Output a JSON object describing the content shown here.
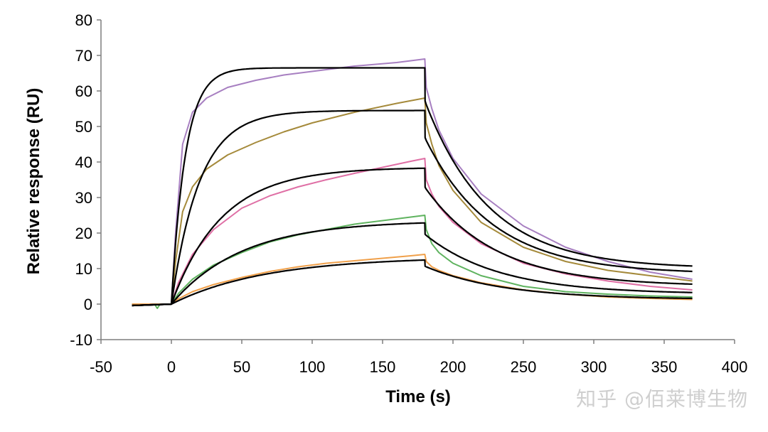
{
  "chart_data": {
    "type": "line",
    "title": "",
    "xlabel": "Time (s)",
    "ylabel": "Relative response (RU)",
    "xlim": [
      -50,
      400
    ],
    "ylim": [
      -10,
      80
    ],
    "xticks": [
      -50,
      0,
      50,
      100,
      150,
      200,
      250,
      300,
      350,
      400
    ],
    "yticks": [
      -10,
      0,
      10,
      20,
      30,
      40,
      50,
      60,
      70,
      80
    ],
    "grid": false,
    "legend": "none",
    "series": [
      {
        "kind": "measured",
        "color": "#a77fc1",
        "x": [
          -28,
          0,
          3,
          8,
          15,
          25,
          40,
          60,
          80,
          100,
          130,
          160,
          180,
          181,
          185,
          190,
          200,
          220,
          250,
          280,
          310,
          340,
          370
        ],
        "y": [
          0,
          0,
          20,
          45,
          54,
          58,
          61,
          63,
          64.5,
          65.5,
          67,
          68,
          69,
          61,
          55,
          49,
          41,
          31,
          22,
          16,
          12,
          9,
          7
        ]
      },
      {
        "kind": "measured",
        "color": "#a58a3b",
        "x": [
          -28,
          0,
          3,
          8,
          15,
          25,
          40,
          60,
          80,
          100,
          130,
          160,
          180,
          181,
          185,
          190,
          200,
          220,
          250,
          280,
          310,
          340,
          370
        ],
        "y": [
          0,
          0,
          12,
          26,
          33,
          38,
          42,
          45.5,
          48.5,
          51,
          54,
          56.5,
          58,
          51,
          45,
          39,
          32,
          23,
          16,
          12,
          9.5,
          8,
          6.5
        ]
      },
      {
        "kind": "measured",
        "color": "#df6fa5",
        "x": [
          -28,
          0,
          5,
          15,
          30,
          50,
          70,
          90,
          110,
          130,
          150,
          170,
          180,
          181,
          185,
          190,
          200,
          220,
          250,
          280,
          310,
          340,
          370
        ],
        "y": [
          0,
          0,
          6,
          14,
          21,
          27,
          30.5,
          33,
          35,
          36.8,
          38.5,
          40.2,
          41,
          35,
          31,
          27.5,
          23,
          17,
          11.5,
          8.5,
          6.5,
          5,
          4
        ]
      },
      {
        "kind": "measured",
        "color": "#5fb35f",
        "x": [
          -28,
          -12,
          -10,
          -8,
          0,
          5,
          15,
          30,
          50,
          70,
          90,
          110,
          130,
          150,
          170,
          180,
          181,
          185,
          190,
          200,
          220,
          250,
          280,
          310,
          340,
          370
        ],
        "y": [
          0,
          0,
          -1.2,
          0,
          0,
          3,
          7,
          11,
          14.5,
          17.5,
          19.5,
          21,
          22.5,
          23.5,
          24.5,
          25,
          21,
          17,
          14.5,
          11.5,
          8,
          5,
          3.5,
          2.8,
          2.3,
          2
        ]
      },
      {
        "kind": "measured",
        "color": "#f0a04a",
        "x": [
          -28,
          0,
          5,
          15,
          30,
          50,
          70,
          90,
          110,
          130,
          150,
          170,
          180,
          181,
          185,
          190,
          200,
          220,
          250,
          280,
          310,
          340,
          370
        ],
        "y": [
          0,
          0,
          1.5,
          3.5,
          5.5,
          7.5,
          9.2,
          10.5,
          11.5,
          12.2,
          12.9,
          13.6,
          14,
          12,
          10.5,
          9.5,
          8,
          6,
          4,
          2.8,
          2,
          1.6,
          1.3
        ]
      }
    ],
    "fits": [
      {
        "kind": "fit",
        "color": "#000000",
        "Rmax": 66.5,
        "ka": 0.1,
        "Roff": 10,
        "kd": 0.022
      },
      {
        "kind": "fit",
        "color": "#000000",
        "Rmax": 54.5,
        "ka": 0.05,
        "Roff": 8.5,
        "kd": 0.021
      },
      {
        "kind": "fit",
        "color": "#000000",
        "Rmax": 38.5,
        "ka": 0.028,
        "Roff": 5,
        "kd": 0.02
      },
      {
        "kind": "fit",
        "color": "#000000",
        "Rmax": 23.5,
        "ka": 0.02,
        "Roff": 2.8,
        "kd": 0.019
      },
      {
        "kind": "fit",
        "color": "#000000",
        "Rmax": 13.3,
        "ka": 0.015,
        "Roff": 1.3,
        "kd": 0.018
      }
    ],
    "association_end": 180,
    "x_end": 370
  },
  "watermark": "知乎 @佰莱博生物"
}
